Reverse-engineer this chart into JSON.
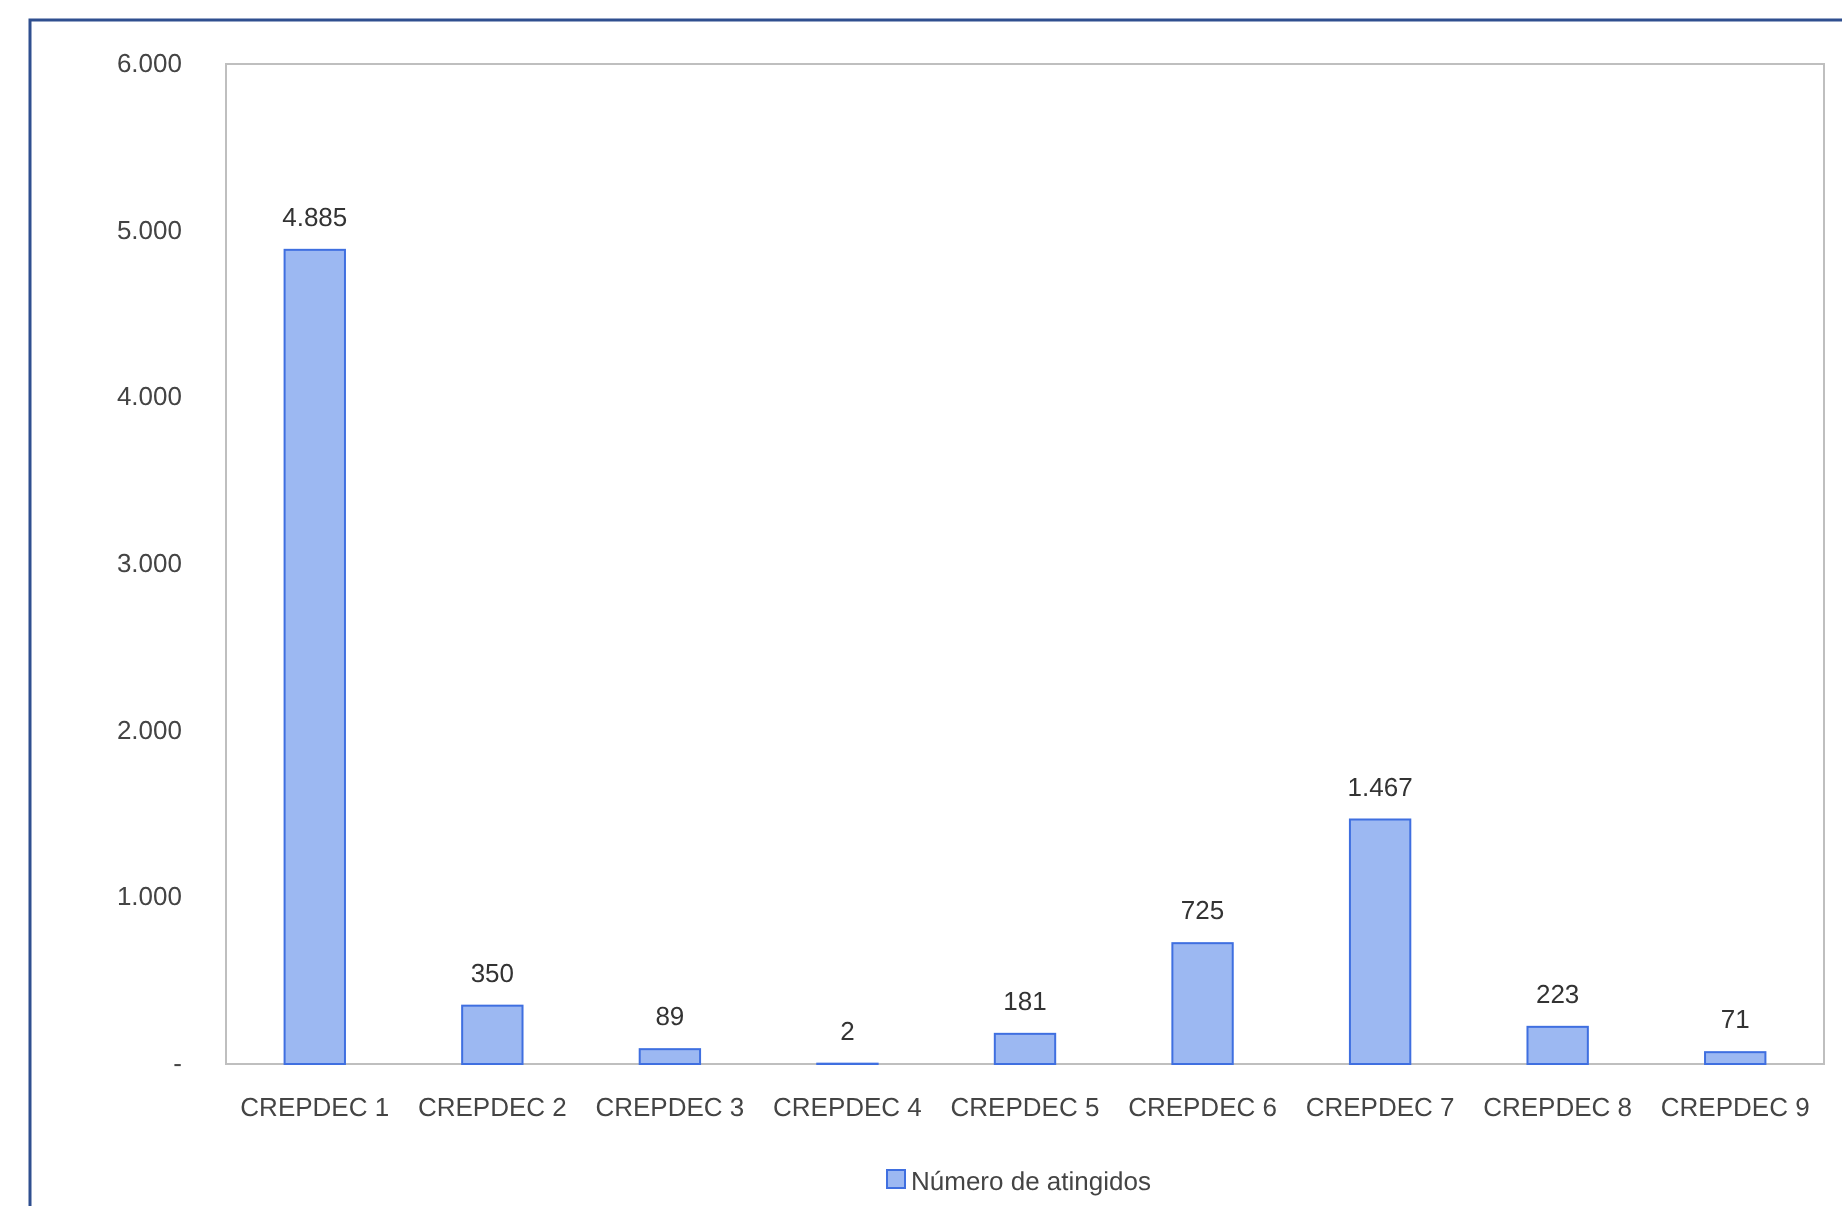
{
  "chart_data": {
    "type": "bar",
    "categories": [
      "CREPDEC 1",
      "CREPDEC 2",
      "CREPDEC 3",
      "CREPDEC 4",
      "CREPDEC 5",
      "CREPDEC 6",
      "CREPDEC 7",
      "CREPDEC 8",
      "CREPDEC 9"
    ],
    "series": [
      {
        "name": "Número de atingidos",
        "color": "#9cb8f2",
        "values": [
          4885,
          350,
          89,
          2,
          181,
          725,
          1467,
          223,
          71
        ],
        "value_labels": [
          "4.885",
          "350",
          "89",
          "2",
          "181",
          "725",
          "1.467",
          "223",
          "71"
        ]
      }
    ],
    "ylim": [
      0,
      6000
    ],
    "yticks": [
      {
        "value": 0,
        "label": "-"
      },
      {
        "value": 1000,
        "label": "1.000"
      },
      {
        "value": 2000,
        "label": "2.000"
      },
      {
        "value": 3000,
        "label": "3.000"
      },
      {
        "value": 4000,
        "label": "4.000"
      },
      {
        "value": 5000,
        "label": "5.000"
      },
      {
        "value": 6000,
        "label": "6.000"
      }
    ],
    "grid": false,
    "legend": "bottom"
  }
}
